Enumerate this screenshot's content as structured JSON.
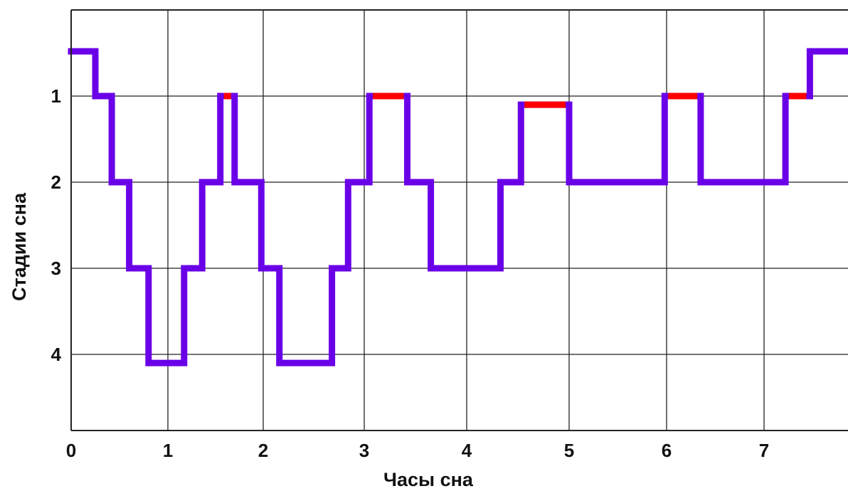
{
  "chart_data": {
    "type": "line",
    "xlabel": "Часы сна",
    "ylabel": "Стадии сна",
    "x_ticks": [
      "0",
      "1",
      "2",
      "3",
      "4",
      "5",
      "6",
      "7"
    ],
    "y_ticks": [
      "1",
      "2",
      "3",
      "4"
    ],
    "xlim": [
      0,
      7.95
    ],
    "ylim": [
      0,
      4.9
    ],
    "y_inverted": true,
    "grid": true,
    "line_color": "#6a00e8",
    "rem_color": "#ff0000",
    "series": [
      {
        "steps": [
          [
            0.0,
            0.48
          ],
          [
            0.25,
            0.48
          ],
          [
            0.25,
            1.0
          ],
          [
            0.42,
            1.0
          ],
          [
            0.42,
            2.0
          ],
          [
            0.6,
            2.0
          ],
          [
            0.6,
            3.0
          ],
          [
            0.8,
            3.0
          ],
          [
            0.8,
            4.1
          ],
          [
            1.17,
            4.1
          ],
          [
            1.17,
            3.0
          ],
          [
            1.36,
            3.0
          ],
          [
            1.36,
            2.0
          ],
          [
            1.55,
            2.0
          ],
          [
            1.55,
            1.0
          ],
          [
            1.7,
            1.0
          ],
          [
            1.7,
            2.0
          ],
          [
            1.98,
            2.0
          ],
          [
            1.98,
            3.0
          ],
          [
            2.16,
            3.0
          ],
          [
            2.16,
            4.1
          ],
          [
            2.68,
            4.1
          ],
          [
            2.68,
            3.0
          ],
          [
            2.84,
            3.0
          ],
          [
            2.84,
            2.0
          ],
          [
            3.05,
            2.0
          ],
          [
            3.05,
            1.0
          ],
          [
            3.42,
            1.0
          ],
          [
            3.42,
            2.0
          ],
          [
            3.65,
            2.0
          ],
          [
            3.65,
            3.0
          ],
          [
            4.33,
            3.0
          ],
          [
            4.33,
            2.0
          ],
          [
            4.53,
            2.0
          ],
          [
            4.53,
            1.1
          ],
          [
            5.0,
            1.1
          ],
          [
            5.0,
            2.0
          ],
          [
            5.98,
            2.0
          ],
          [
            5.98,
            1.0
          ],
          [
            6.35,
            1.0
          ],
          [
            6.35,
            2.0
          ],
          [
            7.22,
            2.0
          ],
          [
            7.22,
            1.0
          ],
          [
            7.47,
            1.0
          ],
          [
            7.47,
            0.48
          ],
          [
            7.95,
            0.48
          ]
        ],
        "rem_segments": [
          {
            "x": [
              1.55,
              1.7
            ],
            "y": 1.0
          },
          {
            "x": [
              3.05,
              3.42
            ],
            "y": 1.0
          },
          {
            "x": [
              4.53,
              5.0
            ],
            "y": 1.1
          },
          {
            "x": [
              5.98,
              6.35
            ],
            "y": 1.0
          },
          {
            "x": [
              7.22,
              7.47
            ],
            "y": 1.0
          }
        ]
      }
    ]
  }
}
